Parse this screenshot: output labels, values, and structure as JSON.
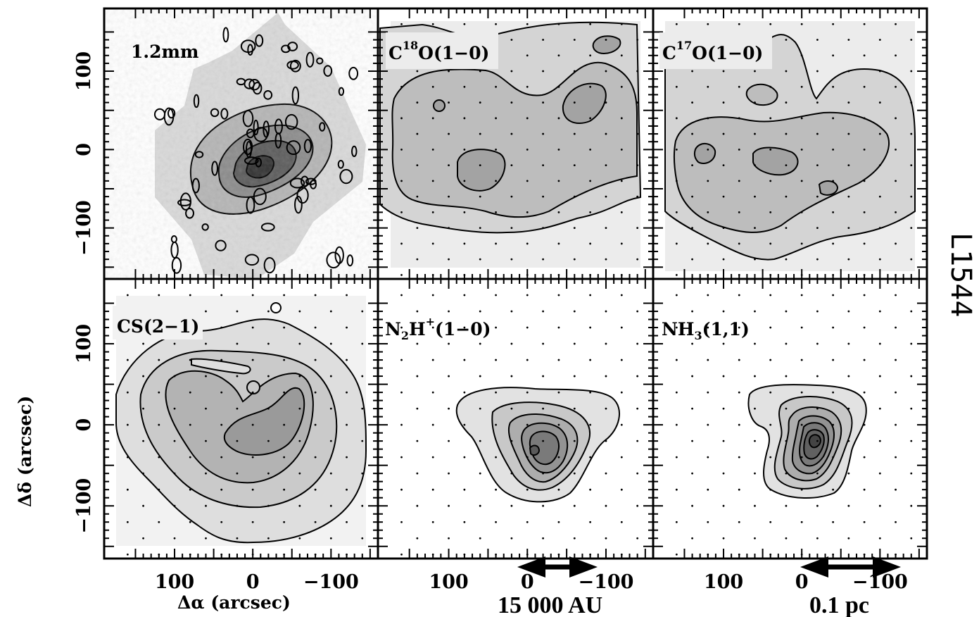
{
  "figure": {
    "source_name": "L1544",
    "xlabel": "Δα (arcsec)",
    "ylabel": "Δδ (arcsec)",
    "scale_bar_1": "15 000 AU",
    "scale_bar_2": "0.1 pc"
  },
  "chart_data": [
    {
      "type": "heatmap",
      "panel": "1.2mm",
      "label": {
        "main": "1.2mm"
      },
      "xlim": [
        190,
        -160
      ],
      "ylim": [
        -165,
        180
      ],
      "xticks": [
        100,
        0,
        -100
      ],
      "yticks": [
        100,
        0,
        -100
      ],
      "peak_offset": [
        10,
        -20
      ],
      "colors": {
        "outer": "#e6e6e6",
        "inner": "#3a3a3a"
      }
    },
    {
      "type": "heatmap",
      "panel": "C18O(1-0)",
      "label": {
        "base": "C",
        "sup": "18",
        "rest": "O(1−0)"
      },
      "xlim": [
        190,
        -160
      ],
      "ylim": [
        -165,
        180
      ],
      "xticks": [
        100,
        0,
        -100
      ],
      "yticks": [
        100,
        0,
        -100
      ],
      "contour_levels": 4
    },
    {
      "type": "heatmap",
      "panel": "C17O(1-0)",
      "label": {
        "base": "C",
        "sup": "17",
        "rest": "O(1−0)"
      },
      "xlim": [
        190,
        -160
      ],
      "ylim": [
        -165,
        180
      ],
      "xticks": [
        100,
        0,
        -100
      ],
      "yticks": [
        100,
        0,
        -100
      ],
      "contour_levels": 4
    },
    {
      "type": "heatmap",
      "panel": "CS(2-1)",
      "label": {
        "main": "CS(2−1)"
      },
      "xlim": [
        190,
        -160
      ],
      "ylim": [
        -165,
        180
      ],
      "xticks": [
        100,
        0,
        -100
      ],
      "yticks": [
        100,
        0,
        -100
      ],
      "contour_levels": 4
    },
    {
      "type": "heatmap",
      "panel": "N2H+(1-0)",
      "label": {
        "base": "N",
        "sub": "2",
        "mid": "H",
        "sup": "+",
        "rest": "(1−0)"
      },
      "xlim": [
        190,
        -160
      ],
      "ylim": [
        -165,
        180
      ],
      "xticks": [
        100,
        0,
        -100
      ],
      "yticks": [
        100,
        0,
        -100
      ],
      "peak_offset": [
        15,
        -25
      ],
      "contour_levels": 6
    },
    {
      "type": "heatmap",
      "panel": "NH3(1,1)",
      "label": {
        "base": "NH",
        "sub": "3",
        "rest": "(1,1)"
      },
      "xlim": [
        190,
        -160
      ],
      "ylim": [
        -165,
        180
      ],
      "xticks": [
        100,
        0,
        -100
      ],
      "yticks": [
        100,
        0,
        -100
      ],
      "peak_offset": [
        -20,
        -25
      ],
      "contour_levels": 8
    }
  ]
}
